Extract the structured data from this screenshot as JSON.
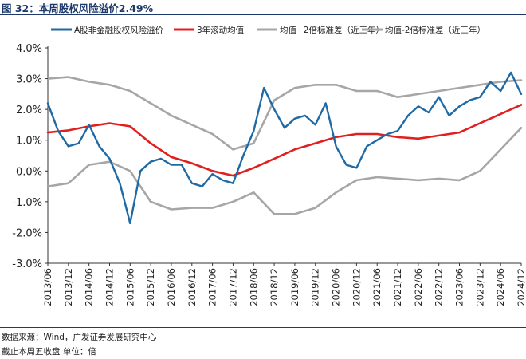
{
  "figure": {
    "title": "图 32：本周股权风险溢价2.49%",
    "source_note": "数据来源：Wind，广发证券发展研究中心",
    "unit_note": "截止本周五收盘 单位：倍"
  },
  "chart_data": {
    "type": "line",
    "title": "",
    "xlabel": "",
    "ylabel": "",
    "ylim": [
      -3.0,
      4.0
    ],
    "yticks": [
      {
        "value": 4.0,
        "label": "4.0%"
      },
      {
        "value": 3.0,
        "label": "3.0%"
      },
      {
        "value": 2.0,
        "label": "2.0%"
      },
      {
        "value": 1.0,
        "label": "1.0%"
      },
      {
        "value": 0.0,
        "label": "0.0%"
      },
      {
        "value": -1.0,
        "label": "-1.0%"
      },
      {
        "value": -2.0,
        "label": "-2.0%"
      },
      {
        "value": -3.0,
        "label": "-3.0%"
      }
    ],
    "xlim": [
      "2013/06",
      "2024/12"
    ],
    "xticks": [
      "2013/06",
      "2013/12",
      "2014/06",
      "2014/12",
      "2015/06",
      "2015/12",
      "2016/06",
      "2016/12",
      "2017/06",
      "2017/12",
      "2018/06",
      "2018/12",
      "2019/06",
      "2019/12",
      "2020/06",
      "2020/12",
      "2021/06",
      "2021/12",
      "2022/06",
      "2022/12",
      "2023/06",
      "2023/12",
      "2024/06",
      "2024/12"
    ],
    "grid": false,
    "legend_position": "top",
    "series": [
      {
        "name": "A股非金融股权风险溢价",
        "color": "#1f6aa5",
        "points": [
          [
            "2013/06",
            2.2
          ],
          [
            "2013/09",
            1.3
          ],
          [
            "2013/12",
            0.8
          ],
          [
            "2014/03",
            0.9
          ],
          [
            "2014/06",
            1.5
          ],
          [
            "2014/09",
            0.8
          ],
          [
            "2014/12",
            0.4
          ],
          [
            "2015/03",
            -0.4
          ],
          [
            "2015/06",
            -1.7
          ],
          [
            "2015/09",
            0.0
          ],
          [
            "2015/12",
            0.3
          ],
          [
            "2016/03",
            0.4
          ],
          [
            "2016/06",
            0.2
          ],
          [
            "2016/09",
            0.2
          ],
          [
            "2016/12",
            -0.4
          ],
          [
            "2017/03",
            -0.5
          ],
          [
            "2017/06",
            -0.1
          ],
          [
            "2017/09",
            -0.3
          ],
          [
            "2017/12",
            -0.4
          ],
          [
            "2018/03",
            0.5
          ],
          [
            "2018/06",
            1.3
          ],
          [
            "2018/09",
            2.7
          ],
          [
            "2018/12",
            2.0
          ],
          [
            "2019/03",
            1.4
          ],
          [
            "2019/06",
            1.7
          ],
          [
            "2019/09",
            1.8
          ],
          [
            "2019/12",
            1.5
          ],
          [
            "2020/03",
            2.2
          ],
          [
            "2020/06",
            0.8
          ],
          [
            "2020/09",
            0.2
          ],
          [
            "2020/12",
            0.1
          ],
          [
            "2021/03",
            0.8
          ],
          [
            "2021/06",
            1.0
          ],
          [
            "2021/09",
            1.2
          ],
          [
            "2021/12",
            1.3
          ],
          [
            "2022/03",
            1.8
          ],
          [
            "2022/06",
            2.1
          ],
          [
            "2022/09",
            1.9
          ],
          [
            "2022/12",
            2.4
          ],
          [
            "2023/03",
            1.8
          ],
          [
            "2023/06",
            2.1
          ],
          [
            "2023/09",
            2.3
          ],
          [
            "2023/12",
            2.4
          ],
          [
            "2024/03",
            2.9
          ],
          [
            "2024/06",
            2.6
          ],
          [
            "2024/09",
            3.2
          ],
          [
            "2024/12",
            2.5
          ]
        ]
      },
      {
        "name": "3年滚动均值",
        "color": "#e02020",
        "points": [
          [
            "2013/06",
            1.25
          ],
          [
            "2013/12",
            1.32
          ],
          [
            "2014/06",
            1.45
          ],
          [
            "2014/12",
            1.55
          ],
          [
            "2015/06",
            1.45
          ],
          [
            "2015/12",
            0.9
          ],
          [
            "2016/06",
            0.45
          ],
          [
            "2016/12",
            0.25
          ],
          [
            "2017/06",
            0.0
          ],
          [
            "2017/12",
            -0.15
          ],
          [
            "2018/06",
            0.1
          ],
          [
            "2018/12",
            0.4
          ],
          [
            "2019/06",
            0.7
          ],
          [
            "2019/12",
            0.9
          ],
          [
            "2020/06",
            1.1
          ],
          [
            "2020/12",
            1.2
          ],
          [
            "2021/06",
            1.2
          ],
          [
            "2021/12",
            1.1
          ],
          [
            "2022/06",
            1.05
          ],
          [
            "2022/12",
            1.15
          ],
          [
            "2023/06",
            1.25
          ],
          [
            "2023/12",
            1.55
          ],
          [
            "2024/06",
            1.85
          ],
          [
            "2024/12",
            2.15
          ]
        ]
      },
      {
        "name": "均值+2倍标准差（近三年）",
        "color": "#a6a6a6",
        "points": [
          [
            "2013/06",
            3.0
          ],
          [
            "2013/12",
            3.05
          ],
          [
            "2014/06",
            2.9
          ],
          [
            "2014/12",
            2.8
          ],
          [
            "2015/06",
            2.6
          ],
          [
            "2015/12",
            2.2
          ],
          [
            "2016/06",
            1.8
          ],
          [
            "2016/12",
            1.5
          ],
          [
            "2017/06",
            1.2
          ],
          [
            "2017/12",
            0.7
          ],
          [
            "2018/06",
            0.9
          ],
          [
            "2018/12",
            2.3
          ],
          [
            "2019/06",
            2.7
          ],
          [
            "2019/12",
            2.8
          ],
          [
            "2020/06",
            2.8
          ],
          [
            "2020/12",
            2.6
          ],
          [
            "2021/06",
            2.6
          ],
          [
            "2021/12",
            2.4
          ],
          [
            "2022/06",
            2.5
          ],
          [
            "2022/12",
            2.6
          ],
          [
            "2023/06",
            2.7
          ],
          [
            "2023/12",
            2.8
          ],
          [
            "2024/06",
            2.9
          ],
          [
            "2024/12",
            2.95
          ]
        ]
      },
      {
        "name": "均值-2倍标准差（近三年）",
        "color": "#a6a6a6",
        "points": [
          [
            "2013/06",
            -0.5
          ],
          [
            "2013/12",
            -0.4
          ],
          [
            "2014/06",
            0.2
          ],
          [
            "2014/12",
            0.3
          ],
          [
            "2015/06",
            0.0
          ],
          [
            "2015/12",
            -1.0
          ],
          [
            "2016/06",
            -1.25
          ],
          [
            "2016/12",
            -1.2
          ],
          [
            "2017/06",
            -1.2
          ],
          [
            "2017/12",
            -1.0
          ],
          [
            "2018/06",
            -0.7
          ],
          [
            "2018/12",
            -1.4
          ],
          [
            "2019/06",
            -1.4
          ],
          [
            "2019/12",
            -1.2
          ],
          [
            "2020/06",
            -0.7
          ],
          [
            "2020/12",
            -0.3
          ],
          [
            "2021/06",
            -0.2
          ],
          [
            "2021/12",
            -0.25
          ],
          [
            "2022/06",
            -0.3
          ],
          [
            "2022/12",
            -0.25
          ],
          [
            "2023/06",
            -0.3
          ],
          [
            "2023/12",
            0.0
          ],
          [
            "2024/06",
            0.7
          ],
          [
            "2024/12",
            1.4
          ]
        ]
      }
    ]
  }
}
